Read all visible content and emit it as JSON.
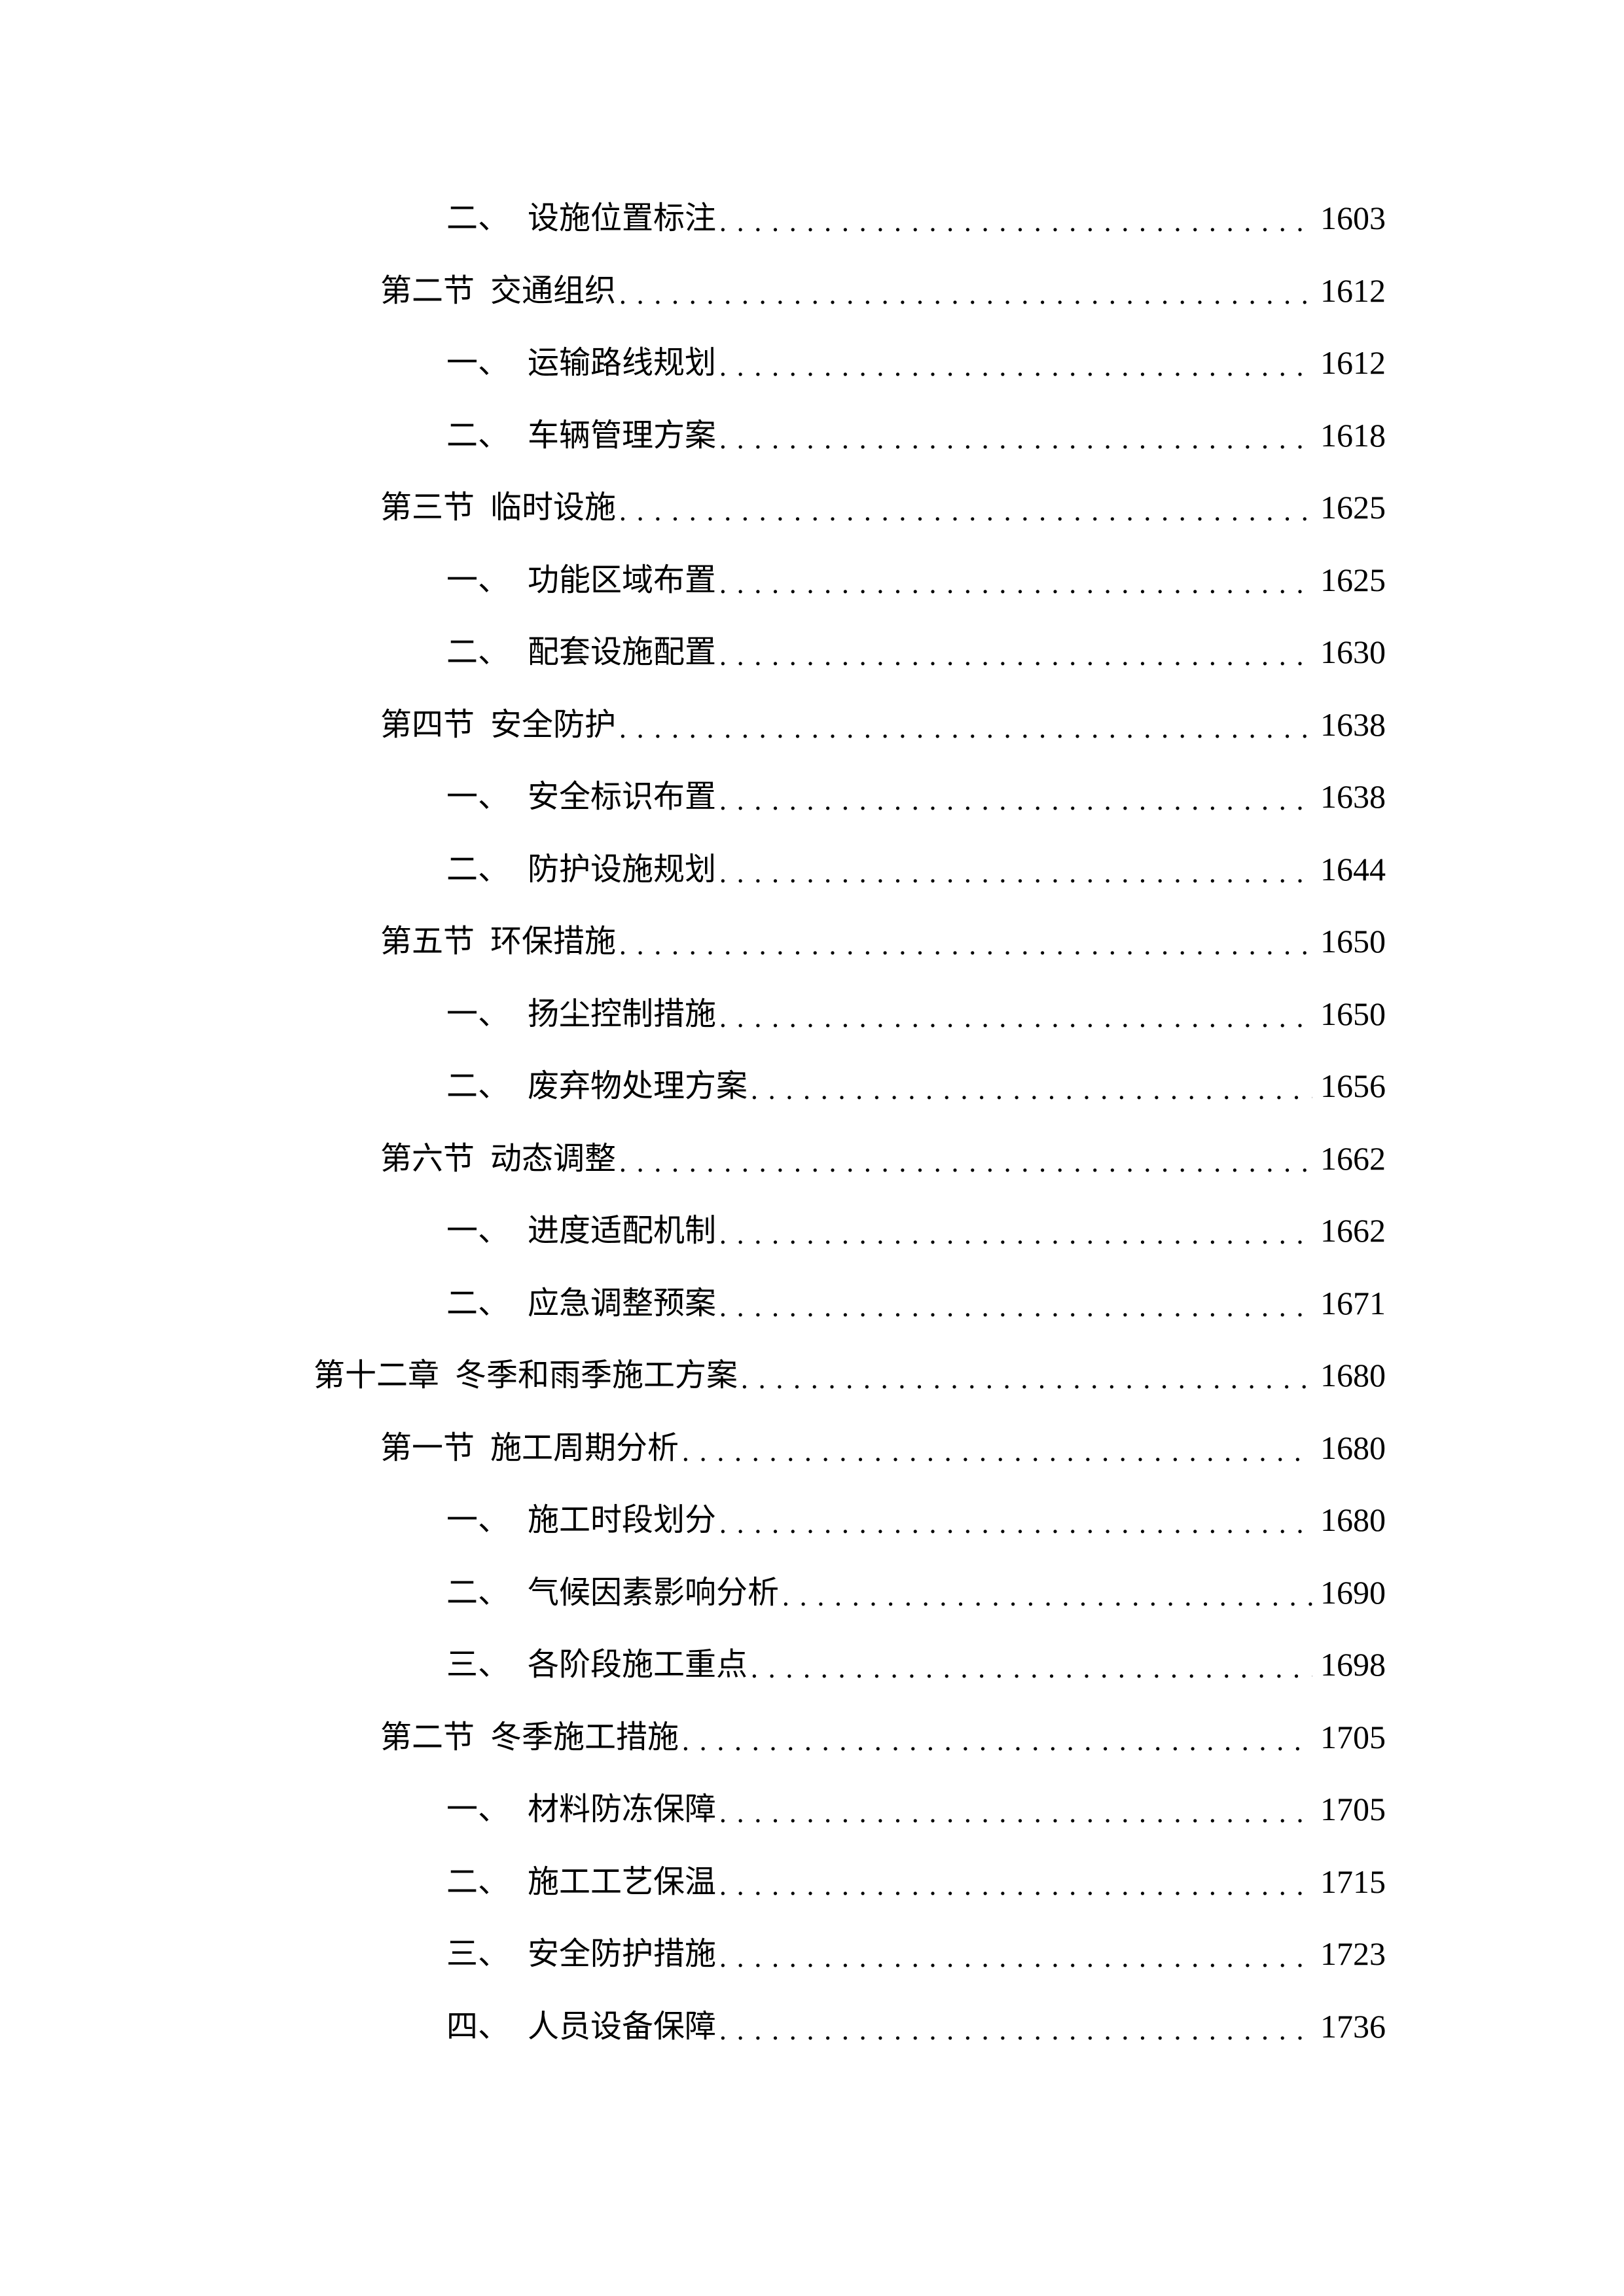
{
  "toc": [
    {
      "level": 2,
      "prefix": "二、",
      "title": "设施位置标注",
      "page": "1603"
    },
    {
      "level": 1,
      "prefix": "第二节",
      "title": "交通组织",
      "page": "1612"
    },
    {
      "level": 2,
      "prefix": "一、",
      "title": "运输路线规划",
      "page": "1612"
    },
    {
      "level": 2,
      "prefix": "二、",
      "title": "车辆管理方案",
      "page": "1618"
    },
    {
      "level": 1,
      "prefix": "第三节",
      "title": "临时设施",
      "page": "1625"
    },
    {
      "level": 2,
      "prefix": "一、",
      "title": "功能区域布置",
      "page": "1625"
    },
    {
      "level": 2,
      "prefix": "二、",
      "title": "配套设施配置",
      "page": "1630"
    },
    {
      "level": 1,
      "prefix": "第四节",
      "title": "安全防护",
      "page": "1638"
    },
    {
      "level": 2,
      "prefix": "一、",
      "title": "安全标识布置",
      "page": "1638"
    },
    {
      "level": 2,
      "prefix": "二、",
      "title": "防护设施规划",
      "page": "1644"
    },
    {
      "level": 1,
      "prefix": "第五节",
      "title": "环保措施",
      "page": "1650"
    },
    {
      "level": 2,
      "prefix": "一、",
      "title": "扬尘控制措施",
      "page": "1650"
    },
    {
      "level": 2,
      "prefix": "二、",
      "title": "废弃物处理方案",
      "page": "1656"
    },
    {
      "level": 1,
      "prefix": "第六节",
      "title": "动态调整",
      "page": "1662"
    },
    {
      "level": 2,
      "prefix": "一、",
      "title": "进度适配机制",
      "page": "1662"
    },
    {
      "level": 2,
      "prefix": "二、",
      "title": "应急调整预案",
      "page": "1671"
    },
    {
      "level": 0,
      "prefix": "第十二章",
      "title": "冬季和雨季施工方案",
      "page": "1680"
    },
    {
      "level": 1,
      "prefix": "第一节",
      "title": "施工周期分析",
      "page": "1680"
    },
    {
      "level": 2,
      "prefix": "一、",
      "title": "施工时段划分",
      "page": "1680"
    },
    {
      "level": 2,
      "prefix": "二、",
      "title": "气候因素影响分析",
      "page": "1690"
    },
    {
      "level": 2,
      "prefix": "三、",
      "title": "各阶段施工重点",
      "page": "1698"
    },
    {
      "level": 1,
      "prefix": "第二节",
      "title": "冬季施工措施",
      "page": "1705"
    },
    {
      "level": 2,
      "prefix": "一、",
      "title": "材料防冻保障",
      "page": "1705"
    },
    {
      "level": 2,
      "prefix": "二、",
      "title": "施工工艺保温",
      "page": "1715"
    },
    {
      "level": 2,
      "prefix": "三、",
      "title": "安全防护措施",
      "page": "1723"
    },
    {
      "level": 2,
      "prefix": "四、",
      "title": "人员设备保障",
      "page": "1736"
    }
  ]
}
